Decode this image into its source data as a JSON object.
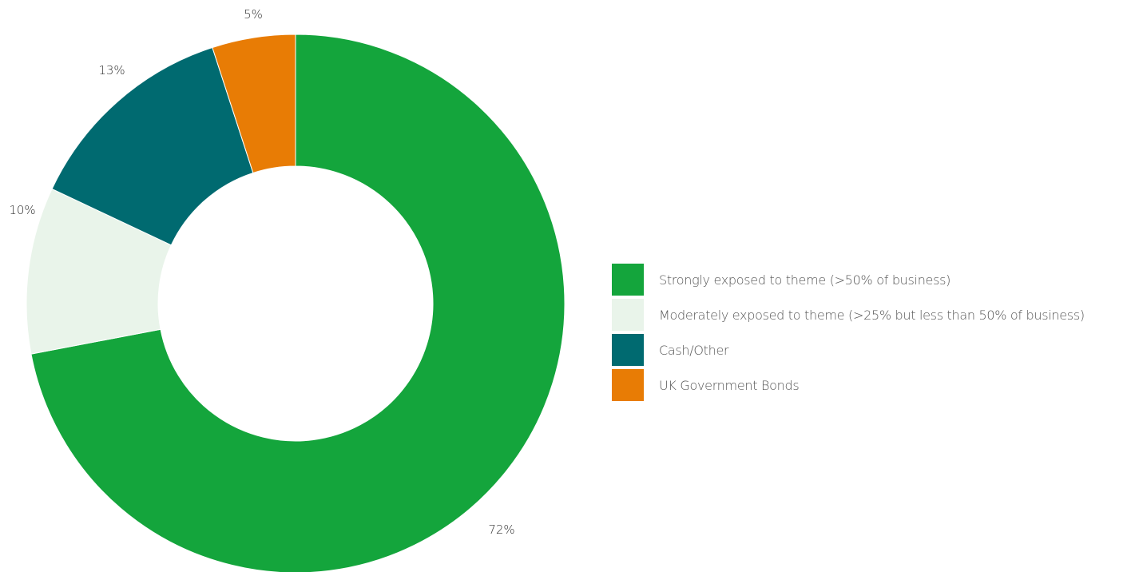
{
  "chart_data": {
    "type": "pie",
    "donut": true,
    "legend_position": "right",
    "slices": [
      {
        "label": "Strongly exposed to theme (>50% of business)",
        "value": 72,
        "value_label": "72%",
        "color": "#14a53c"
      },
      {
        "label": "Moderately exposed to theme (>25% but less than 50% of business)",
        "value": 10,
        "value_label": "10%",
        "color": "#e9f4ea"
      },
      {
        "label": "Cash/Other",
        "value": 13,
        "value_label": "13%",
        "color": "#006a70"
      },
      {
        "label": "UK Government Bonds",
        "value": 5,
        "value_label": "5%",
        "color": "#e87c05"
      }
    ]
  }
}
